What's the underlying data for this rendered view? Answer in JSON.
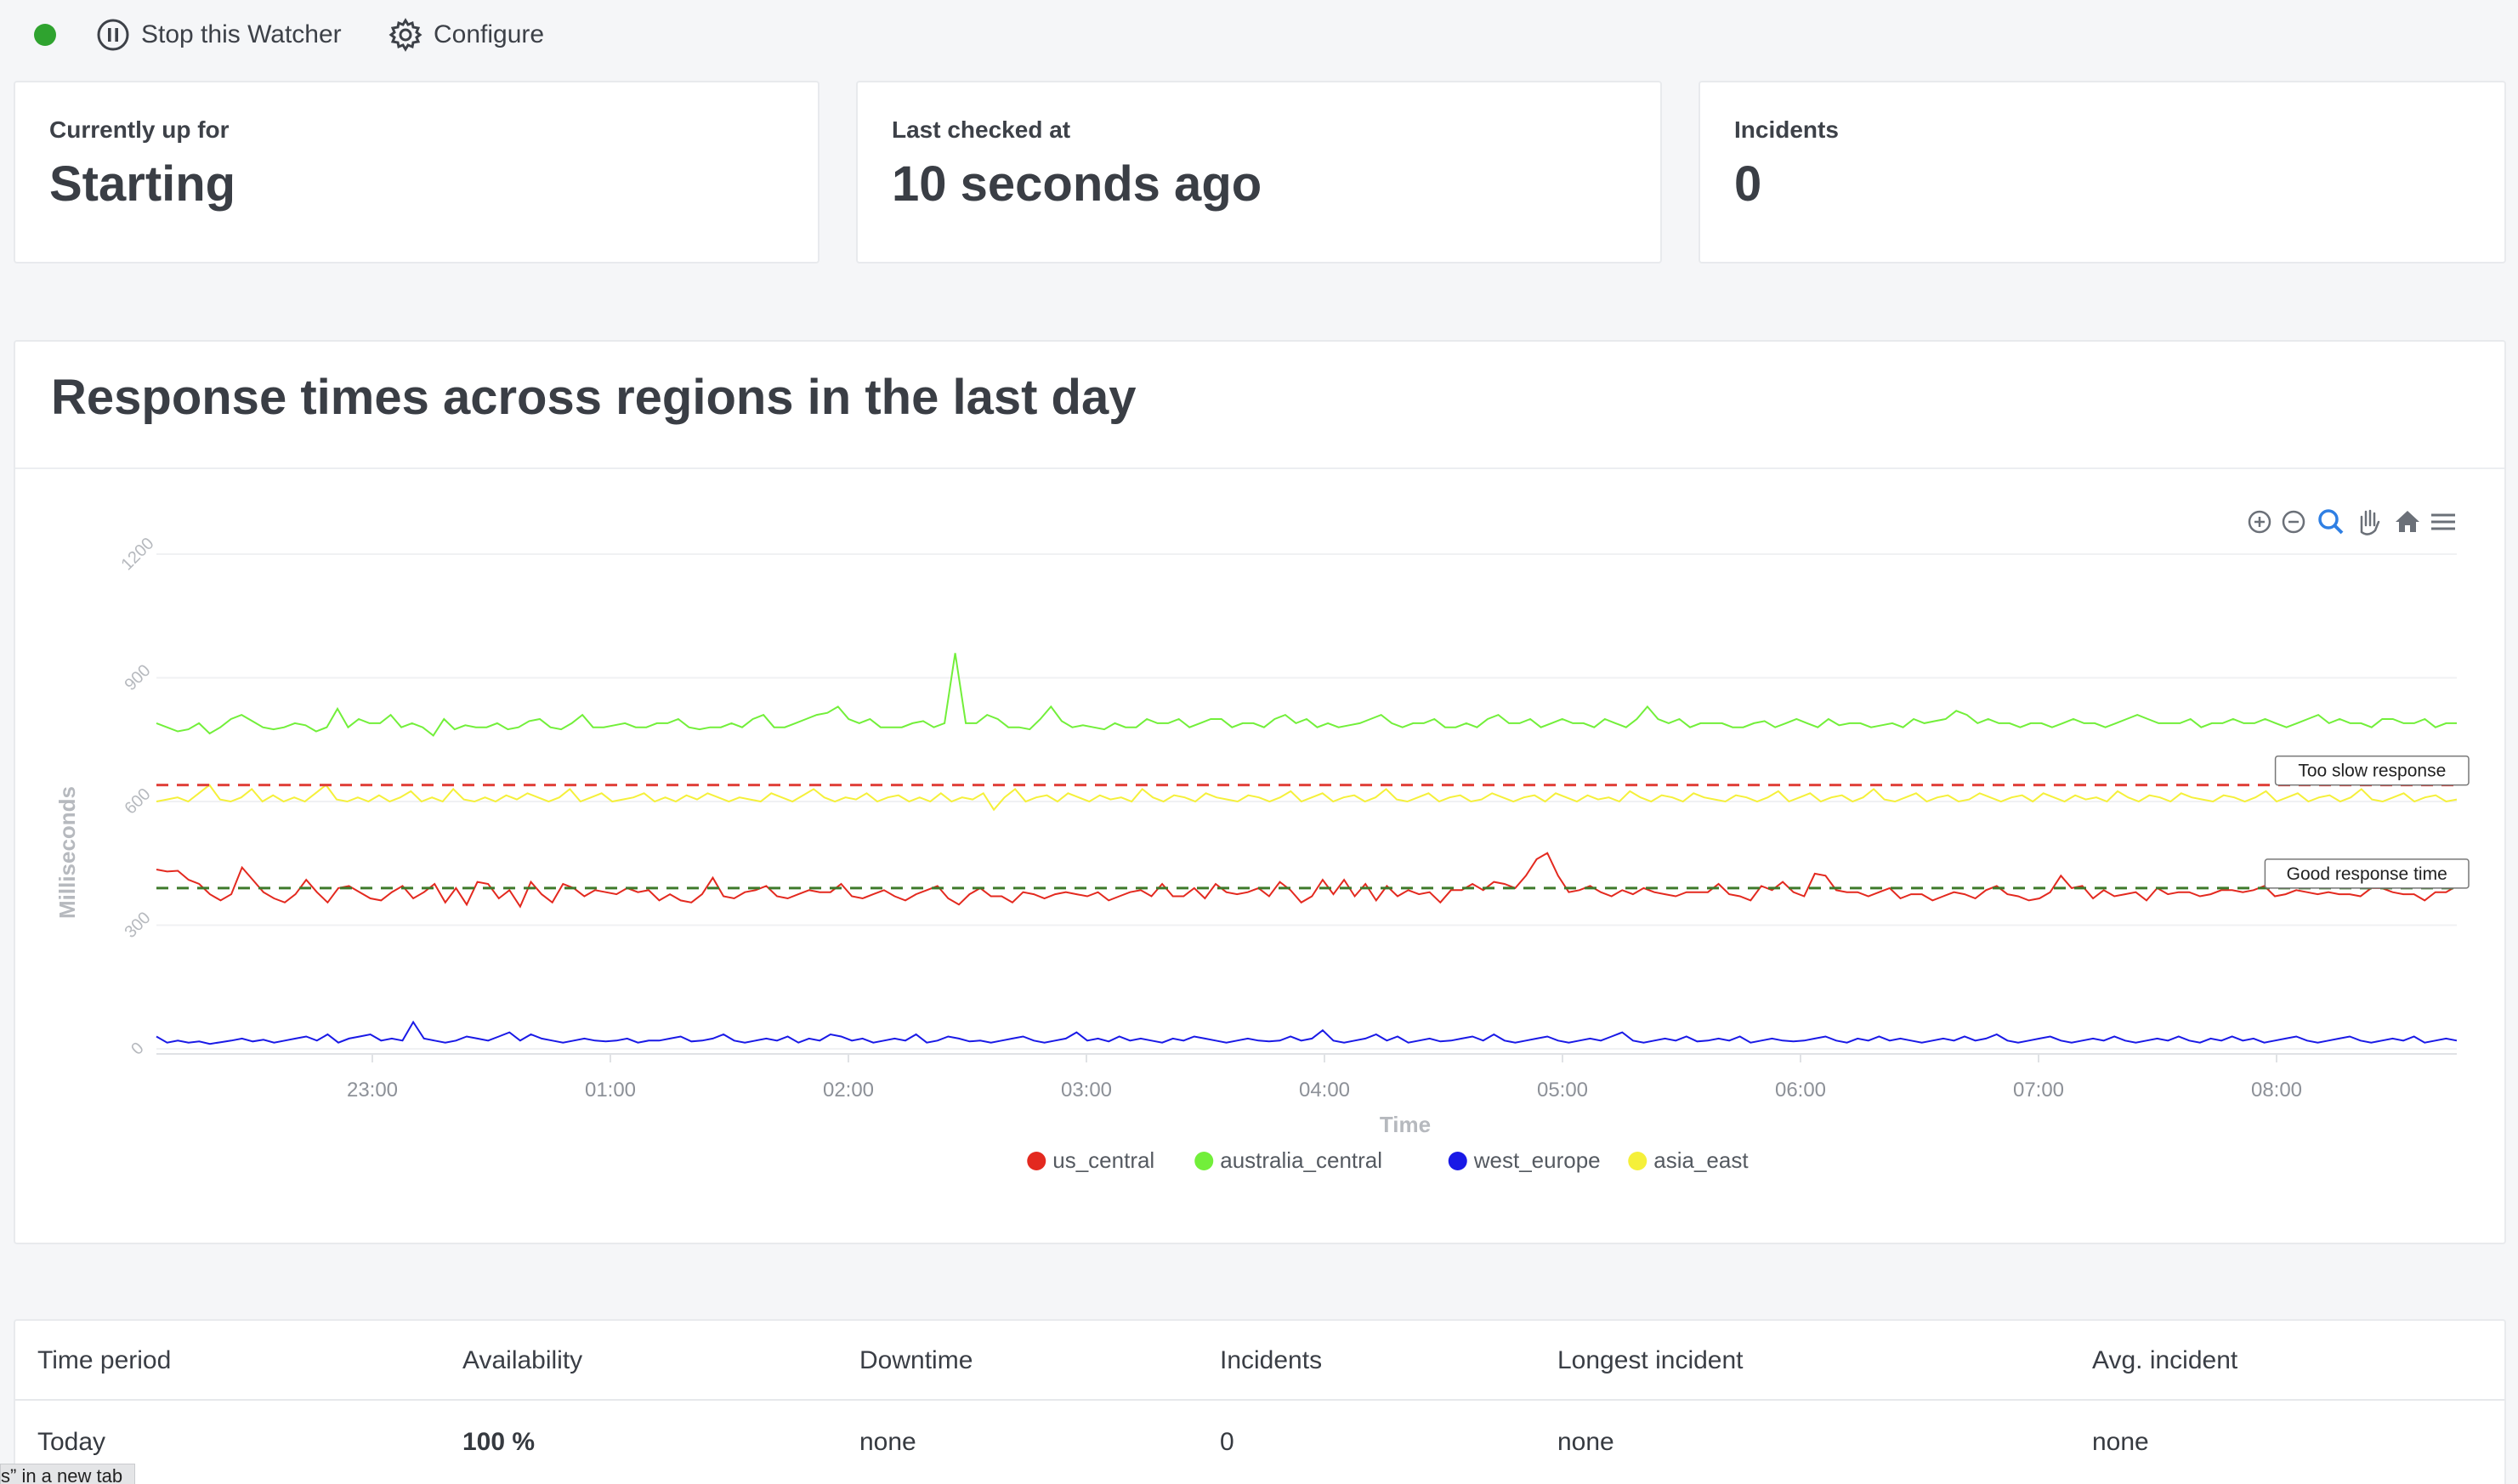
{
  "toolbar": {
    "stop_label": "Stop this Watcher",
    "configure_label": "Configure",
    "status_color": "#2fa32f"
  },
  "stats": [
    {
      "label": "Currently up for",
      "value": "Starting"
    },
    {
      "label": "Last checked at",
      "value": "10 seconds ago"
    },
    {
      "label": "Incidents",
      "value": "0"
    }
  ],
  "chart": {
    "title": "Response times across regions in the last day",
    "toolbar_icons": [
      "zoom-in-icon",
      "zoom-out-icon",
      "selection-zoom-icon",
      "pan-icon",
      "reset-home-icon",
      "menu-icon"
    ]
  },
  "chart_data": {
    "type": "line",
    "xlabel": "Time",
    "ylabel": "Milliseconds",
    "ylim": [
      0,
      1200
    ],
    "yticks": [
      "0",
      "300",
      "600",
      "900",
      "1200"
    ],
    "xticks": [
      "23:00",
      "01:00",
      "02:00",
      "03:00",
      "04:00",
      "05:00",
      "06:00",
      "07:00",
      "08:00"
    ],
    "legend_position": "bottom-center",
    "grid": true,
    "annotations": [
      {
        "label": "Too slow response",
        "y": 640,
        "color": "#e0403a"
      },
      {
        "label": "Good response time",
        "y": 390,
        "color": "#3f7a2c"
      }
    ],
    "series": [
      {
        "name": "us_central",
        "color": "#e3291f",
        "values": [
          435,
          430,
          432,
          410,
          400,
          375,
          360,
          375,
          440,
          410,
          380,
          365,
          355,
          375,
          410,
          380,
          355,
          390,
          395,
          380,
          365,
          360,
          380,
          395,
          365,
          380,
          400,
          355,
          390,
          350,
          405,
          400,
          365,
          385,
          345,
          405,
          375,
          355,
          400,
          390,
          370,
          385,
          380,
          375,
          390,
          380,
          385,
          360,
          375,
          360,
          355,
          375,
          415,
          370,
          365,
          380,
          385,
          395,
          370,
          365,
          375,
          385,
          380,
          380,
          400,
          370,
          365,
          375,
          385,
          370,
          360,
          375,
          385,
          395,
          365,
          350,
          375,
          390,
          370,
          370,
          355,
          380,
          375,
          365,
          375,
          380,
          375,
          370,
          380,
          360,
          370,
          380,
          385,
          370,
          400,
          370,
          370,
          390,
          365,
          400,
          380,
          375,
          380,
          390,
          370,
          405,
          385,
          355,
          370,
          410,
          375,
          410,
          370,
          400,
          360,
          395,
          370,
          385,
          375,
          380,
          355,
          385,
          385,
          400,
          385,
          405,
          400,
          390,
          420,
          460,
          475,
          420,
          380,
          385,
          395,
          380,
          370,
          385,
          375,
          390,
          380,
          375,
          370,
          380,
          380,
          380,
          400,
          375,
          370,
          360,
          395,
          385,
          405,
          380,
          370,
          425,
          420,
          385,
          380,
          380,
          370,
          380,
          390,
          365,
          375,
          375,
          360,
          370,
          380,
          375,
          365,
          385,
          395,
          375,
          370,
          360,
          365,
          380,
          420,
          390,
          395,
          365,
          385,
          370,
          375,
          380,
          360,
          390,
          375,
          380,
          380,
          370,
          375,
          385,
          385,
          380,
          385,
          395,
          370,
          375,
          385,
          380,
          375,
          380,
          375,
          375,
          370,
          390,
          390,
          380,
          375,
          375,
          360,
          380,
          380,
          395
        ]
      },
      {
        "name": "australia_central",
        "color": "#72ef3a",
        "values": [
          790,
          780,
          770,
          775,
          790,
          765,
          780,
          800,
          810,
          795,
          780,
          775,
          780,
          790,
          785,
          770,
          780,
          825,
          780,
          800,
          790,
          790,
          810,
          780,
          790,
          780,
          760,
          800,
          775,
          785,
          780,
          780,
          790,
          775,
          780,
          795,
          800,
          780,
          775,
          790,
          810,
          780,
          780,
          785,
          790,
          780,
          780,
          790,
          790,
          800,
          780,
          775,
          780,
          780,
          790,
          780,
          800,
          810,
          780,
          780,
          790,
          800,
          810,
          815,
          830,
          800,
          790,
          800,
          780,
          780,
          780,
          790,
          795,
          780,
          790,
          960,
          790,
          790,
          810,
          800,
          780,
          780,
          775,
          800,
          830,
          795,
          780,
          785,
          780,
          775,
          790,
          780,
          780,
          800,
          790,
          790,
          800,
          780,
          790,
          800,
          800,
          780,
          790,
          790,
          780,
          800,
          810,
          790,
          800,
          780,
          790,
          780,
          785,
          790,
          800,
          810,
          790,
          780,
          790,
          790,
          800,
          780,
          780,
          790,
          780,
          800,
          810,
          790,
          790,
          800,
          780,
          790,
          800,
          790,
          790,
          780,
          800,
          790,
          780,
          800,
          830,
          800,
          790,
          800,
          780,
          790,
          790,
          790,
          780,
          780,
          790,
          795,
          780,
          790,
          800,
          790,
          780,
          800,
          785,
          790,
          790,
          780,
          785,
          790,
          780,
          800,
          790,
          795,
          800,
          820,
          810,
          790,
          800,
          790,
          790,
          780,
          790,
          790,
          780,
          790,
          800,
          790,
          790,
          780,
          790,
          800,
          810,
          800,
          790,
          790,
          790,
          800,
          780,
          790,
          790,
          800,
          790,
          790,
          800,
          790,
          780,
          790,
          800,
          810,
          790,
          800,
          790,
          790,
          780,
          800,
          800,
          790,
          790,
          800,
          780,
          790,
          790
        ]
      },
      {
        "name": "west_europe",
        "color": "#1919e6",
        "values": [
          30,
          15,
          20,
          15,
          18,
          12,
          16,
          20,
          25,
          18,
          22,
          15,
          20,
          25,
          30,
          20,
          35,
          15,
          25,
          30,
          35,
          20,
          25,
          20,
          65,
          25,
          20,
          15,
          20,
          30,
          25,
          20,
          30,
          40,
          20,
          35,
          25,
          20,
          15,
          20,
          25,
          20,
          18,
          20,
          25,
          15,
          20,
          20,
          25,
          30,
          18,
          20,
          25,
          35,
          20,
          15,
          20,
          25,
          20,
          30,
          15,
          25,
          20,
          35,
          30,
          20,
          25,
          15,
          20,
          25,
          20,
          35,
          15,
          20,
          30,
          25,
          18,
          20,
          15,
          20,
          25,
          30,
          20,
          15,
          20,
          25,
          40,
          20,
          25,
          18,
          30,
          20,
          25,
          20,
          15,
          25,
          20,
          30,
          25,
          20,
          15,
          20,
          25,
          20,
          18,
          20,
          30,
          20,
          25,
          45,
          20,
          15,
          20,
          25,
          35,
          20,
          30,
          15,
          20,
          25,
          18,
          20,
          25,
          30,
          20,
          35,
          20,
          15,
          20,
          25,
          30,
          20,
          15,
          20,
          25,
          20,
          30,
          40,
          20,
          15,
          20,
          25,
          20,
          30,
          18,
          20,
          25,
          20,
          30,
          15,
          20,
          25,
          20,
          18,
          20,
          25,
          30,
          20,
          15,
          25,
          20,
          30,
          20,
          25,
          20,
          15,
          20,
          25,
          20,
          30,
          20,
          25,
          35,
          20,
          15,
          20,
          25,
          30,
          20,
          15,
          20,
          25,
          20,
          30,
          20,
          15,
          20,
          25,
          20,
          30,
          20,
          15,
          25,
          20,
          30,
          20,
          25,
          15,
          20,
          25,
          30,
          20,
          15,
          20,
          25,
          30,
          20,
          15,
          20,
          25,
          20,
          30,
          15,
          20,
          25,
          20
        ]
      },
      {
        "name": "asia_east",
        "color": "#f5f03a",
        "values": [
          600,
          605,
          610,
          600,
          620,
          640,
          605,
          600,
          610,
          630,
          600,
          615,
          600,
          610,
          600,
          620,
          640,
          605,
          600,
          610,
          600,
          615,
          600,
          610,
          625,
          600,
          610,
          600,
          630,
          605,
          600,
          610,
          600,
          615,
          605,
          620,
          610,
          600,
          610,
          630,
          600,
          610,
          620,
          600,
          605,
          610,
          620,
          600,
          610,
          600,
          615,
          605,
          620,
          610,
          600,
          610,
          605,
          600,
          620,
          610,
          600,
          615,
          630,
          610,
          600,
          610,
          605,
          620,
          600,
          610,
          615,
          600,
          610,
          600,
          620,
          600,
          610,
          605,
          620,
          580,
          610,
          630,
          600,
          610,
          615,
          600,
          620,
          610,
          600,
          615,
          605,
          610,
          600,
          630,
          610,
          600,
          615,
          610,
          600,
          620,
          610,
          605,
          600,
          615,
          610,
          600,
          610,
          625,
          600,
          610,
          620,
          600,
          610,
          615,
          600,
          610,
          630,
          605,
          600,
          610,
          620,
          600,
          610,
          615,
          600,
          605,
          620,
          610,
          600,
          610,
          615,
          600,
          620,
          610,
          600,
          615,
          605,
          610,
          600,
          625,
          610,
          600,
          615,
          610,
          600,
          620,
          610,
          605,
          600,
          615,
          610,
          600,
          610,
          625,
          600,
          610,
          620,
          600,
          610,
          615,
          600,
          610,
          630,
          605,
          600,
          610,
          620,
          600,
          610,
          615,
          600,
          605,
          620,
          610,
          600,
          610,
          615,
          600,
          620,
          610,
          600,
          615,
          605,
          610,
          600,
          625,
          610,
          600,
          615,
          610,
          600,
          620,
          610,
          605,
          600,
          615,
          610,
          600,
          610,
          625,
          600,
          610,
          620,
          600,
          610,
          615,
          600,
          610,
          630,
          605,
          600,
          610,
          620,
          600,
          610,
          615,
          600,
          605
        ]
      }
    ]
  },
  "table": {
    "headers": [
      "Time period",
      "Availability",
      "Downtime",
      "Incidents",
      "Longest incident",
      "Avg. incident"
    ],
    "rows": [
      [
        "Today",
        "100 %",
        "none",
        "0",
        "none",
        "none"
      ]
    ]
  },
  "tooltip_fragment": "s” in a new tab"
}
